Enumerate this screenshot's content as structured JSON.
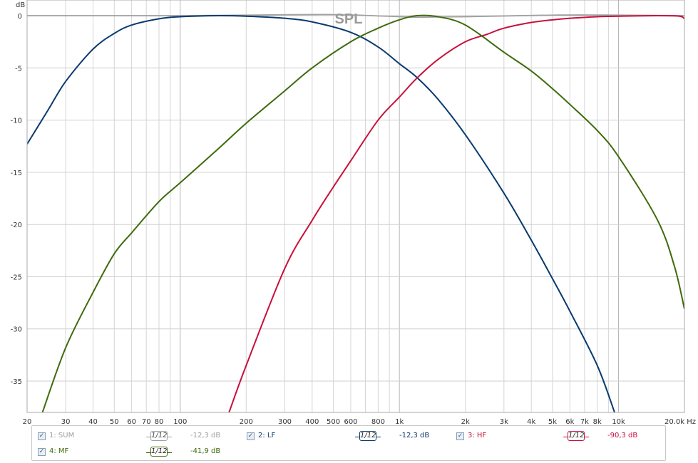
{
  "chart_data": {
    "type": "line",
    "title": "SPL",
    "ylabel": "dB",
    "xunit": "Hz",
    "xscale": "log",
    "xlim": [
      20,
      20000
    ],
    "ylim": [
      -38,
      1.5
    ],
    "grid": true,
    "yticks": [
      {
        "v": 0,
        "label": "0"
      },
      {
        "v": -5,
        "label": "-5"
      },
      {
        "v": -10,
        "label": "-10"
      },
      {
        "v": -15,
        "label": "-15"
      },
      {
        "v": -20,
        "label": "-20"
      },
      {
        "v": -25,
        "label": "-25"
      },
      {
        "v": -30,
        "label": "-30"
      },
      {
        "v": -35,
        "label": "-35"
      }
    ],
    "xticks": [
      {
        "v": 20,
        "label": "20"
      },
      {
        "v": 30,
        "label": "30"
      },
      {
        "v": 40,
        "label": "40"
      },
      {
        "v": 50,
        "label": "50"
      },
      {
        "v": 60,
        "label": "60"
      },
      {
        "v": 70,
        "label": "70"
      },
      {
        "v": 80,
        "label": "80"
      },
      {
        "v": 100,
        "label": "100"
      },
      {
        "v": 200,
        "label": "200"
      },
      {
        "v": 300,
        "label": "300"
      },
      {
        "v": 400,
        "label": "400"
      },
      {
        "v": 500,
        "label": "500"
      },
      {
        "v": 600,
        "label": "600"
      },
      {
        "v": 800,
        "label": "800"
      },
      {
        "v": 1000,
        "label": "1k"
      },
      {
        "v": 2000,
        "label": "2k"
      },
      {
        "v": 3000,
        "label": "3k"
      },
      {
        "v": 4000,
        "label": "4k"
      },
      {
        "v": 5000,
        "label": "5k"
      },
      {
        "v": 6000,
        "label": "6k"
      },
      {
        "v": 7000,
        "label": "7k"
      },
      {
        "v": 8000,
        "label": "8k"
      },
      {
        "v": 10000,
        "label": "10k"
      },
      {
        "v": 20000,
        "label": "20,0k Hz"
      }
    ],
    "series": [
      {
        "name": "SUM",
        "color": "#a0a0a0",
        "x": [
          20,
          30,
          50,
          100,
          200,
          500,
          1000,
          1200,
          2000,
          5000,
          10000,
          20000
        ],
        "y": [
          0,
          0,
          0,
          0,
          0.05,
          0.1,
          -0.1,
          -0.15,
          -0.1,
          0.05,
          0.05,
          0
        ]
      },
      {
        "name": "LF",
        "color": "#0a3a6e",
        "x": [
          20,
          25,
          30,
          40,
          50,
          60,
          80,
          100,
          150,
          200,
          300,
          400,
          600,
          800,
          1000,
          1200,
          1500,
          2000,
          3000,
          4000,
          5000,
          6000,
          8000,
          9600
        ],
        "y": [
          -12.3,
          -9.0,
          -6.3,
          -3.2,
          -1.7,
          -0.9,
          -0.3,
          -0.1,
          0,
          -0.05,
          -0.25,
          -0.6,
          -1.6,
          -3.0,
          -4.6,
          -5.9,
          -8.0,
          -11.4,
          -17.0,
          -21.5,
          -25.2,
          -28.3,
          -33.5,
          -38
        ]
      },
      {
        "name": "HF",
        "color": "#c8103c",
        "x": [
          167,
          200,
          300,
          400,
          500,
          600,
          800,
          1000,
          1200,
          1500,
          2000,
          2500,
          3000,
          4000,
          5000,
          6000,
          8000,
          10000,
          15000,
          19000,
          20000
        ],
        "y": [
          -38,
          -33.5,
          -24.2,
          -19.6,
          -16.4,
          -13.9,
          -10.0,
          -7.8,
          -6.0,
          -4.2,
          -2.5,
          -1.8,
          -1.2,
          -0.65,
          -0.4,
          -0.25,
          -0.1,
          -0.05,
          0,
          -0.05,
          -0.3
        ]
      },
      {
        "name": "MF",
        "color": "#3e6b0c",
        "x": [
          23.5,
          30,
          40,
          50,
          60,
          80,
          100,
          150,
          200,
          300,
          400,
          600,
          800,
          1000,
          1200,
          1500,
          2000,
          3000,
          4000,
          5000,
          6000,
          8000,
          10000,
          15000,
          18000,
          20000
        ],
        "y": [
          -38,
          -31.8,
          -26.5,
          -22.8,
          -20.8,
          -17.8,
          -16.0,
          -12.7,
          -10.3,
          -7.2,
          -5.0,
          -2.5,
          -1.2,
          -0.4,
          0,
          -0.1,
          -0.9,
          -3.5,
          -5.3,
          -7.0,
          -8.5,
          -11.0,
          -13.5,
          -19.5,
          -24.0,
          -28.1
        ]
      }
    ]
  },
  "legend": [
    {
      "num_label": "1: SUM",
      "smoothing_num": "1",
      "smoothing_den": "12",
      "level": "-12,3 dB",
      "color": "#a0a0a0",
      "checked": true
    },
    {
      "num_label": "2: LF",
      "smoothing_num": "1",
      "smoothing_den": "12",
      "level": "-12,3 dB",
      "color": "#0a3a6e",
      "checked": true
    },
    {
      "num_label": "3: HF",
      "smoothing_num": "1",
      "smoothing_den": "12",
      "level": "-90,3 dB",
      "color": "#c8103c",
      "checked": true
    },
    {
      "num_label": "4: MF",
      "smoothing_num": "1",
      "smoothing_den": "12",
      "level": "-41,9 dB",
      "color": "#3e6b0c",
      "checked": true
    }
  ]
}
